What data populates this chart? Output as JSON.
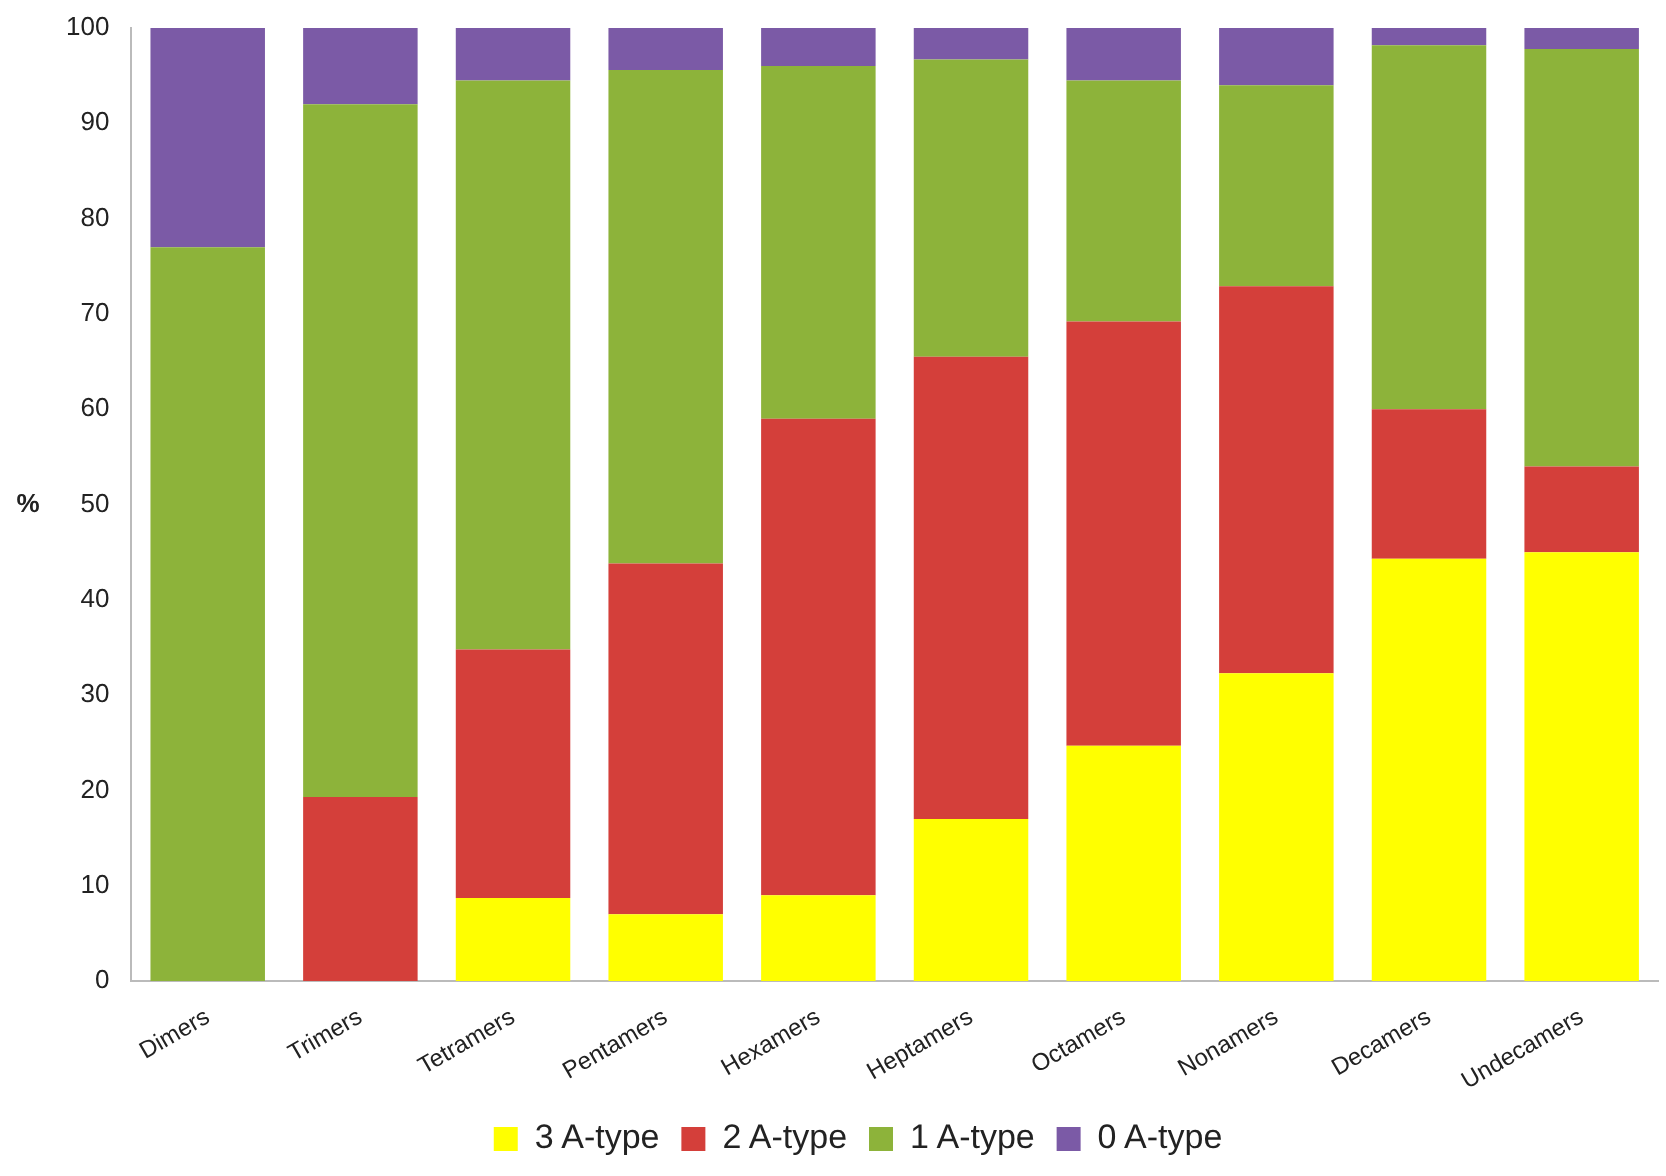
{
  "chart_data": {
    "type": "bar",
    "stacked": true,
    "ylabel": "%",
    "categories": [
      "Dimers",
      "Trimers",
      "Tetramers",
      "Pentamers",
      "Hexamers",
      "Heptamers",
      "Octamers",
      "Nonamers",
      "Decamers",
      "Undecamers"
    ],
    "series": [
      {
        "name": "3 A-type",
        "color": "#ffff00",
        "values": [
          0,
          0,
          8.7,
          7,
          9,
          17,
          24.7,
          32.3,
          44.3,
          45
        ]
      },
      {
        "name": "2 A-type",
        "color": "#d43f3a",
        "values": [
          0,
          19.3,
          26.1,
          36.8,
          50,
          48.5,
          44.5,
          40.6,
          15.7,
          9
        ]
      },
      {
        "name": "1 A-type",
        "color": "#8db33a",
        "values": [
          77,
          72.7,
          59.7,
          51.8,
          37,
          31.2,
          25.3,
          21.1,
          38.2,
          43.8
        ]
      },
      {
        "name": "0 A-type",
        "color": "#7b5aa6",
        "values": [
          23,
          8,
          5.5,
          4.4,
          4,
          3.3,
          5.5,
          6,
          1.8,
          2.2
        ]
      }
    ],
    "ylim": [
      0,
      100
    ],
    "yticks": [
      0,
      10,
      20,
      30,
      40,
      50,
      60,
      70,
      80,
      90,
      100
    ],
    "grid": false,
    "legend": "bottom"
  }
}
